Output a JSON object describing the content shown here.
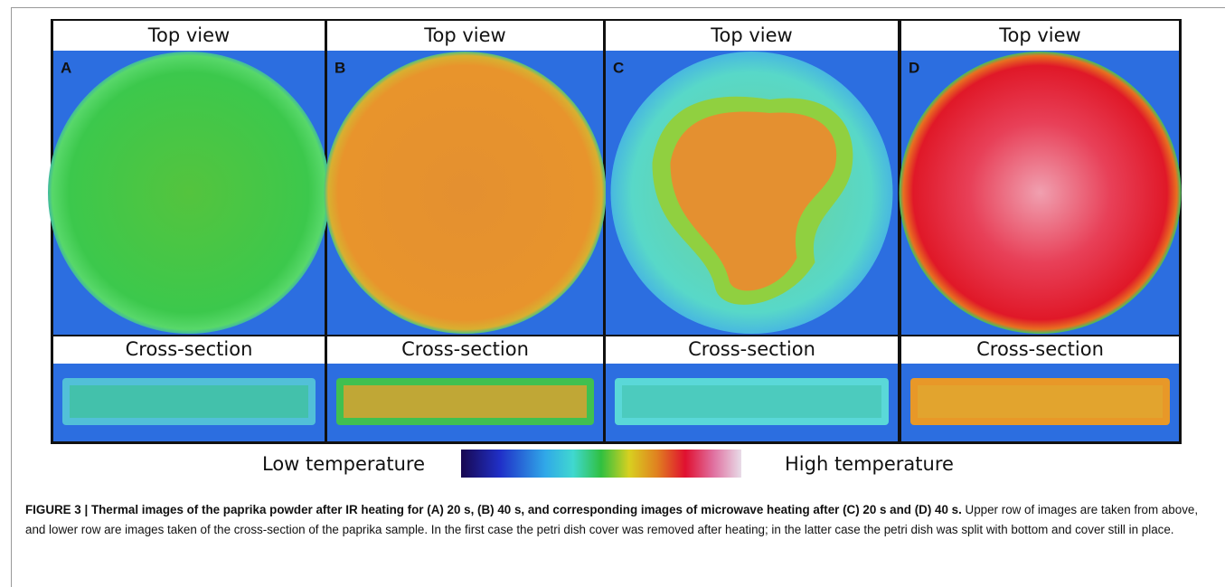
{
  "panels": [
    {
      "label": "A",
      "top_title": "Top view",
      "bottom_title": "Cross-section"
    },
    {
      "label": "B",
      "top_title": "Top view",
      "bottom_title": "Cross-section"
    },
    {
      "label": "C",
      "top_title": "Top view",
      "bottom_title": "Cross-section"
    },
    {
      "label": "D",
      "top_title": "Top view",
      "bottom_title": "Cross-section"
    }
  ],
  "legend": {
    "low": "Low temperature",
    "high": "High temperature"
  },
  "caption": {
    "title": "FIGURE 3 | Thermal images of the paprika powder after IR heating for (A) 20 s, (B) 40 s, and corresponding images of microwave heating after (C) 20 s and (D) 40 s.",
    "text": "Upper row of images are taken from above, and lower row are images taken of the cross-section of the paprika sample. In the first case the petri dish cover was removed after heating; in the latter case the petri dish was split with bottom and cover still in place."
  }
}
